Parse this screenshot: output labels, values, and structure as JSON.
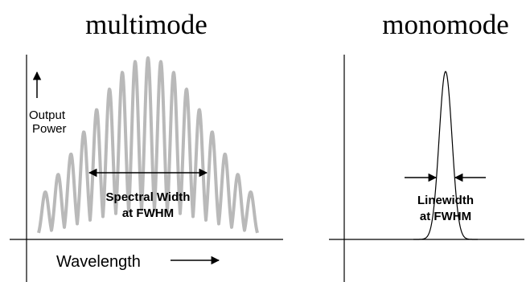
{
  "panels": {
    "multimode": {
      "title": "multimode",
      "ylabel_line1": "Output",
      "ylabel_line2": "Power",
      "xlabel": "Wavelength",
      "width_label_line1": "Spectral Width",
      "width_label_line2": "at FWHM",
      "line_color": "#b9b9b9"
    },
    "monomode": {
      "title": "monomode",
      "width_label_line1": "Linewidth",
      "width_label_line2": "at FWHM",
      "line_color": "#000000"
    }
  }
}
